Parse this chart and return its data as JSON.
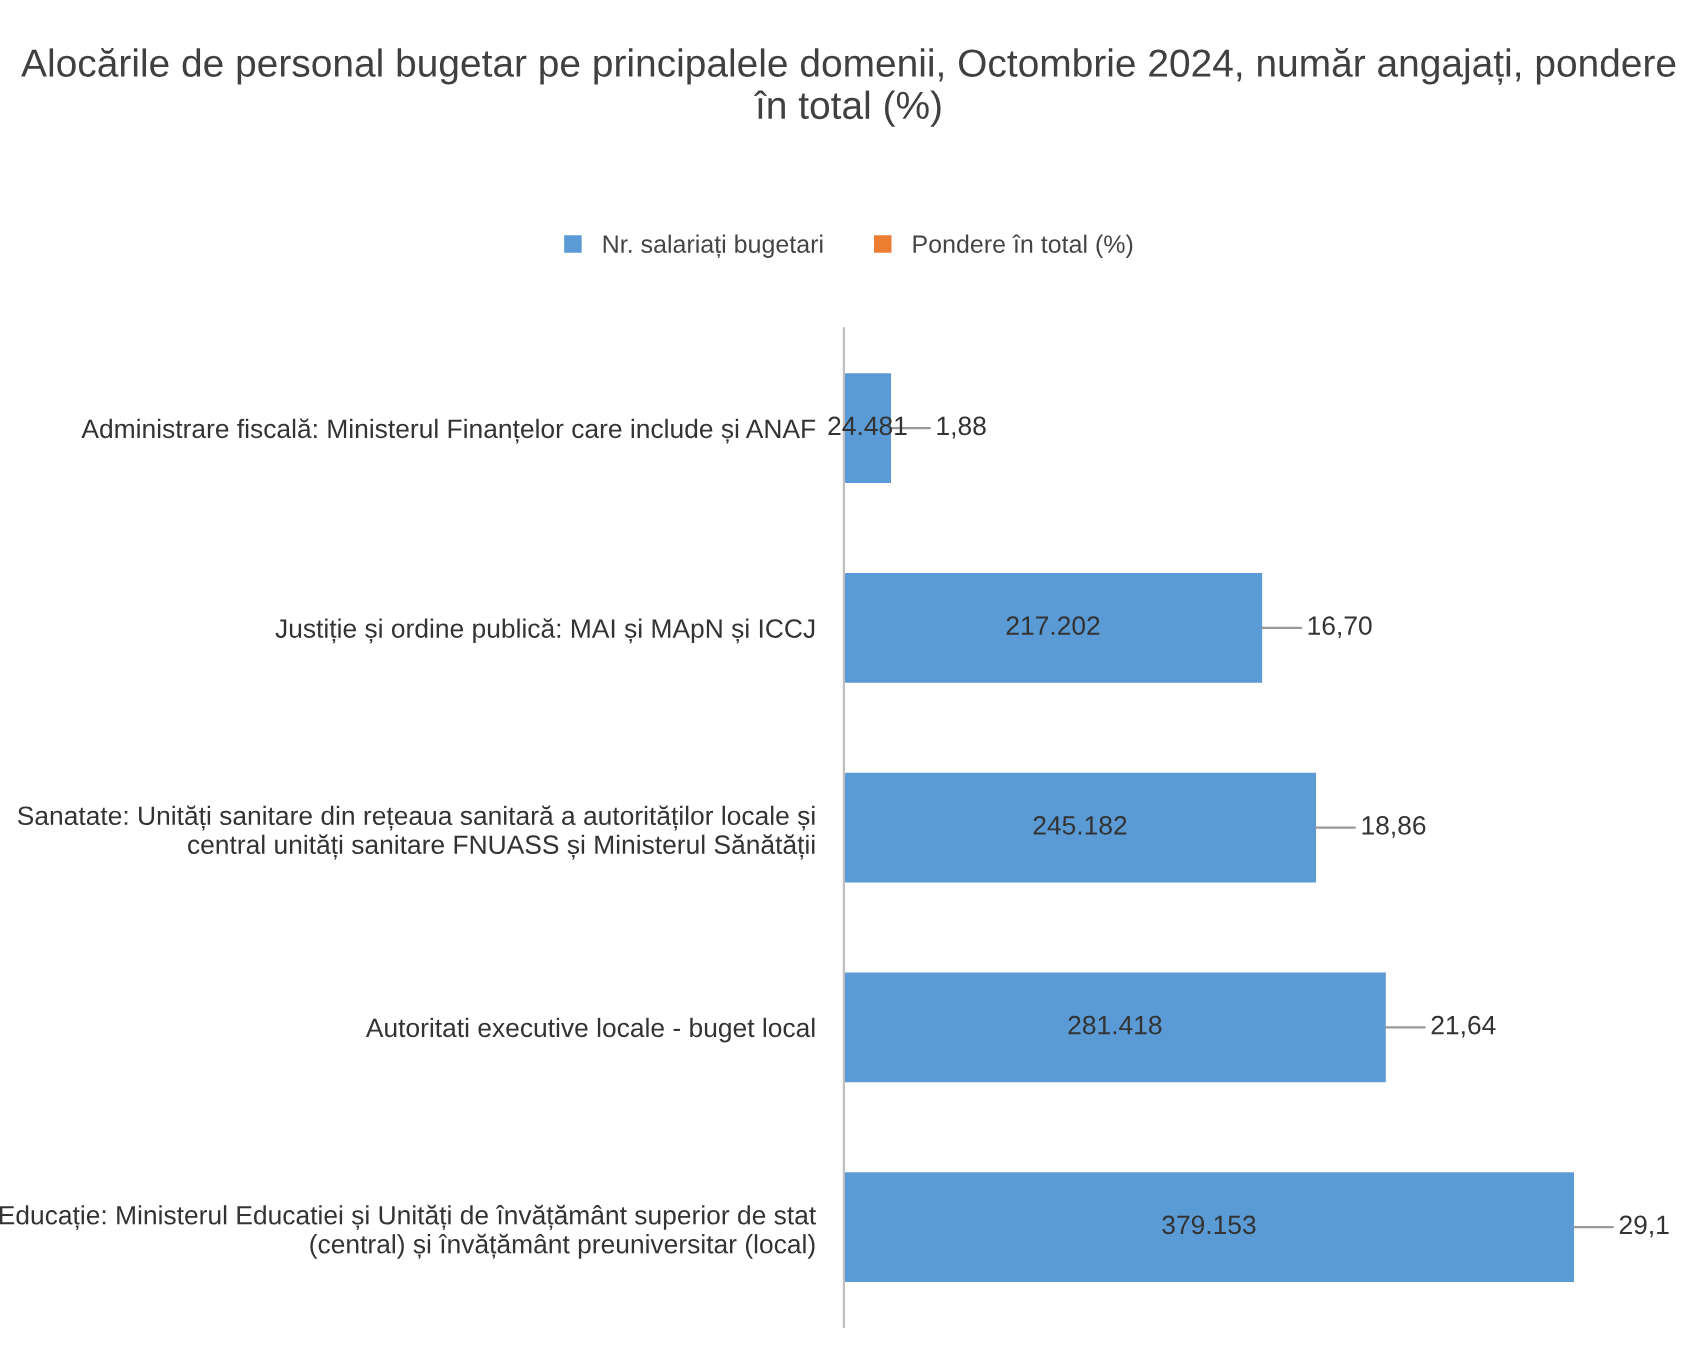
{
  "chart_data": {
    "type": "bar",
    "orientation": "horizontal",
    "stacked": true,
    "title": "Alocările de personal bugetar pe principalele domenii, Octombrie 2024, număr angajați, pondere în total (%)",
    "categories": [
      "Administrare fiscală: Ministerul Finanțelor care include și ANAF",
      "Justiție și ordine publică: MAI și MApN și ICCJ",
      "Sanatate: Unități sanitare din rețeaua sanitară a autorităților locale și\ncentral unități sanitare FNUASS și Ministerul Sănătății",
      "Autoritati executive locale - buget local",
      "Educație: Ministerul Educatiei și Unități de învățământ superior de stat\n(central) și învățământ preuniversitar (local)"
    ],
    "series": [
      {
        "name": "Nr. salariați bugetari",
        "color": "#5b9bd5",
        "values": [
          24481,
          217202,
          245182,
          281418,
          379153
        ],
        "value_labels": [
          "24.481",
          "217.202",
          "245.182",
          "281.418",
          "379.153"
        ]
      },
      {
        "name": "Pondere în total (%)",
        "color": "#ed7d31",
        "values": [
          1.88,
          16.7,
          18.86,
          21.64,
          29.1
        ],
        "value_labels": [
          "1,88",
          "16,70",
          "18,86",
          "21,64",
          "29,1"
        ]
      }
    ],
    "legend": "top",
    "grid": false
  }
}
